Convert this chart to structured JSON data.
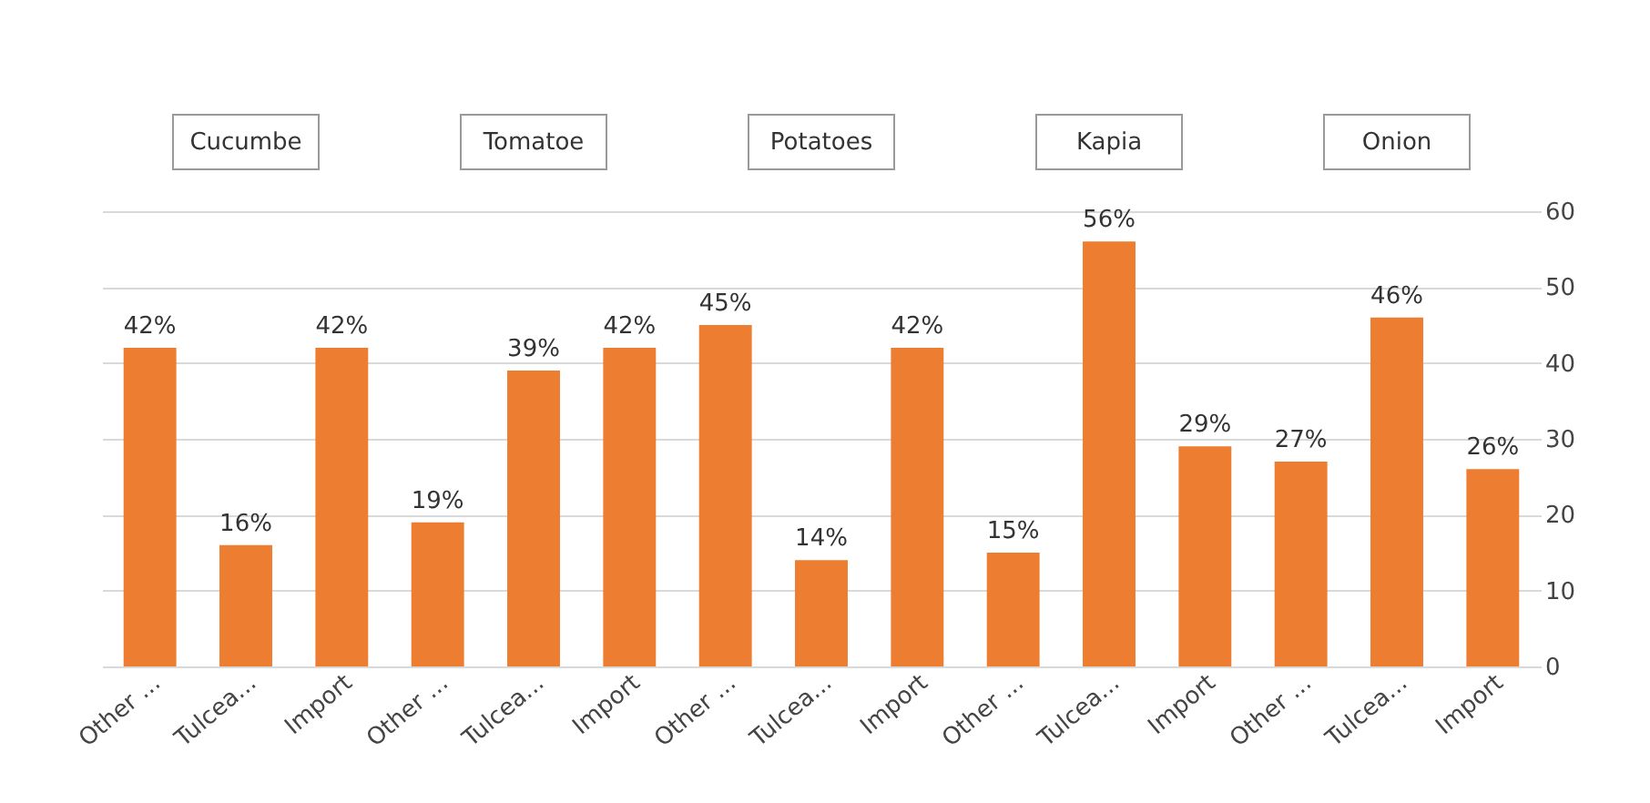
{
  "chart_data": {
    "type": "bar",
    "categories": [
      "Other ...",
      "Tulcea...",
      "Import",
      "Other ...",
      "Tulcea...",
      "Import",
      "Other ...",
      "Tulcea...",
      "Import",
      "Other ...",
      "Tulcea...",
      "Import",
      "Other ...",
      "Tulcea...",
      "Import"
    ],
    "series": [
      {
        "color": "#ed7d31",
        "values": [
          42,
          16,
          42,
          19,
          39,
          42,
          45,
          14,
          42,
          15,
          56,
          29,
          27,
          46,
          26
        ],
        "value_labels": [
          "42%",
          "16%",
          "42%",
          "19%",
          "39%",
          "42%",
          "45%",
          "14%",
          "42%",
          "15%",
          "56%",
          "29%",
          "27%",
          "46%",
          "26%"
        ]
      }
    ],
    "annotations": [
      "Cucumbe",
      "Tomatoe",
      "Potatoes",
      "Kapia",
      "Onion"
    ],
    "ylim": [
      0,
      60
    ],
    "yticks": [
      0,
      10,
      20,
      30,
      40,
      50,
      60
    ],
    "grid": "y"
  }
}
